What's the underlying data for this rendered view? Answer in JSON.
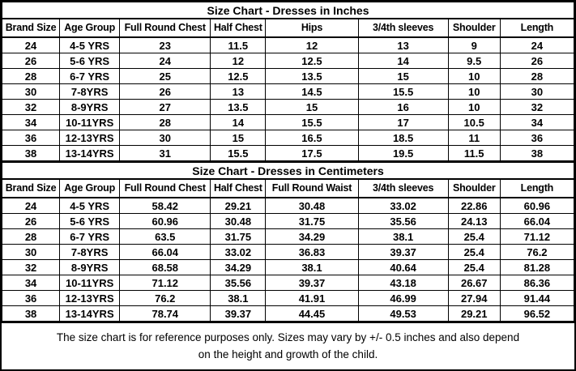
{
  "colors": {
    "border": "#000000",
    "background": "#ffffff",
    "text": "#000000"
  },
  "tables": [
    {
      "title": "Size Chart - Dresses in Inches",
      "headers": [
        "Brand Size",
        "Age Group",
        "Full Round Chest",
        "Half Chest",
        "Hips",
        "3/4th sleeves",
        "Shoulder",
        "Length"
      ],
      "rows": [
        [
          "24",
          "4-5 YRS",
          "23",
          "11.5",
          "12",
          "13",
          "9",
          "24"
        ],
        [
          "26",
          "5-6 YRS",
          "24",
          "12",
          "12.5",
          "14",
          "9.5",
          "26"
        ],
        [
          "28",
          "6-7 YRS",
          "25",
          "12.5",
          "13.5",
          "15",
          "10",
          "28"
        ],
        [
          "30",
          "7-8YRS",
          "26",
          "13",
          "14.5",
          "15.5",
          "10",
          "30"
        ],
        [
          "32",
          "8-9YRS",
          "27",
          "13.5",
          "15",
          "16",
          "10",
          "32"
        ],
        [
          "34",
          "10-11YRS",
          "28",
          "14",
          "15.5",
          "17",
          "10.5",
          "34"
        ],
        [
          "36",
          "12-13YRS",
          "30",
          "15",
          "16.5",
          "18.5",
          "11",
          "36"
        ],
        [
          "38",
          "13-14YRS",
          "31",
          "15.5",
          "17.5",
          "19.5",
          "11.5",
          "38"
        ]
      ]
    },
    {
      "title": "Size Chart - Dresses in Centimeters",
      "headers": [
        "Brand Size",
        "Age Group",
        "Full Round Chest",
        "Half Chest",
        "Full Round Waist",
        "3/4th sleeves",
        "Shoulder",
        "Length"
      ],
      "rows": [
        [
          "24",
          "4-5 YRS",
          "58.42",
          "29.21",
          "30.48",
          "33.02",
          "22.86",
          "60.96"
        ],
        [
          "26",
          "5-6 YRS",
          "60.96",
          "30.48",
          "31.75",
          "35.56",
          "24.13",
          "66.04"
        ],
        [
          "28",
          "6-7 YRS",
          "63.5",
          "31.75",
          "34.29",
          "38.1",
          "25.4",
          "71.12"
        ],
        [
          "30",
          "7-8YRS",
          "66.04",
          "33.02",
          "36.83",
          "39.37",
          "25.4",
          "76.2"
        ],
        [
          "32",
          "8-9YRS",
          "68.58",
          "34.29",
          "38.1",
          "40.64",
          "25.4",
          "81.28"
        ],
        [
          "34",
          "10-11YRS",
          "71.12",
          "35.56",
          "39.37",
          "43.18",
          "26.67",
          "86.36"
        ],
        [
          "36",
          "12-13YRS",
          "76.2",
          "38.1",
          "41.91",
          "46.99",
          "27.94",
          "91.44"
        ],
        [
          "38",
          "13-14YRS",
          "78.74",
          "39.37",
          "44.45",
          "49.53",
          "29.21",
          "96.52"
        ]
      ]
    }
  ],
  "footer": {
    "line1": "The size chart is for reference purposes only. Sizes may vary by +/- 0.5 inches and also depend",
    "line2": "on the height and growth of the child."
  }
}
